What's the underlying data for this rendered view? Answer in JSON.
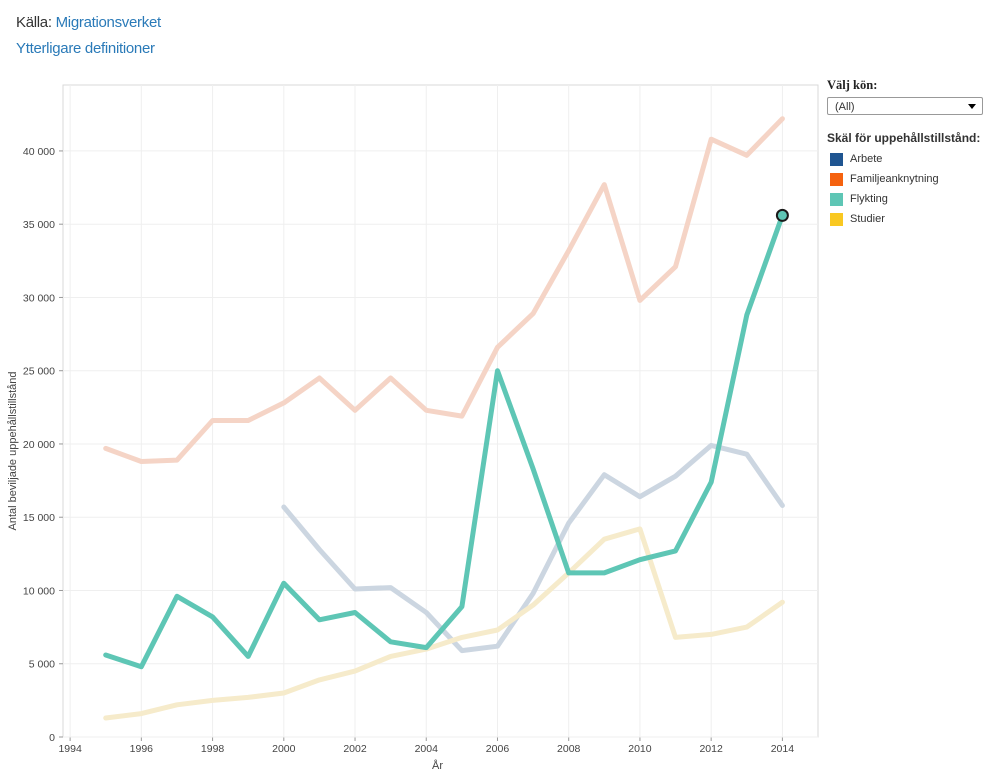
{
  "header": {
    "source_label": "Källa:",
    "source_link": "Migrationsverket",
    "definitions_link": "Ytterligare definitioner"
  },
  "filter": {
    "title": "Välj kön:",
    "selected": "(All)"
  },
  "legend": {
    "title": "Skäl för uppehållstillstånd:",
    "items": [
      {
        "label": "Arbete",
        "color": "#1f5591"
      },
      {
        "label": "Familjeanknytning",
        "color": "#f5620f"
      },
      {
        "label": "Flykting",
        "color": "#5ec6b5"
      },
      {
        "label": "Studier",
        "color": "#f9c821"
      }
    ]
  },
  "chart_data": {
    "type": "line",
    "xlabel": "År",
    "ylabel": "Antal beviljade uppehållstillstånd",
    "xlim": [
      1993.8,
      2015
    ],
    "ylim": [
      0,
      44500
    ],
    "x_ticks": [
      1994,
      1996,
      1998,
      2000,
      2002,
      2004,
      2006,
      2008,
      2010,
      2012,
      2014
    ],
    "y_ticks": [
      0,
      5000,
      10000,
      15000,
      20000,
      25000,
      30000,
      35000,
      40000
    ],
    "y_tick_labels": [
      "0",
      "5 000",
      "10 000",
      "15 000",
      "20 000",
      "25 000",
      "30 000",
      "35 000",
      "40 000"
    ],
    "grid": true,
    "highlighted_series": "Flykting",
    "series": [
      {
        "name": "Familjeanknytning",
        "color": "#f5d4c6",
        "x": [
          1995,
          1996,
          1997,
          1998,
          1999,
          2000,
          2001,
          2002,
          2003,
          2004,
          2005,
          2006,
          2007,
          2008,
          2009,
          2010,
          2011,
          2012,
          2013,
          2014
        ],
        "values": [
          19700,
          18800,
          18900,
          21600,
          21600,
          22800,
          24500,
          22300,
          24500,
          22300,
          21900,
          26600,
          28900,
          33200,
          37700,
          29800,
          32100,
          40800,
          39700,
          42200
        ]
      },
      {
        "name": "Arbete",
        "color": "#ccd6e1",
        "x": [
          2000,
          2001,
          2002,
          2003,
          2004,
          2005,
          2006,
          2007,
          2008,
          2009,
          2010,
          2011,
          2012,
          2013,
          2014
        ],
        "values": [
          15700,
          12800,
          10100,
          10200,
          8500,
          5900,
          6200,
          9800,
          14600,
          17900,
          16400,
          17800,
          19900,
          19300,
          15800
        ]
      },
      {
        "name": "Studier",
        "color": "#f6ebcb",
        "x": [
          1995,
          1996,
          1997,
          1998,
          1999,
          2000,
          2001,
          2002,
          2003,
          2004,
          2005,
          2006,
          2007,
          2008,
          2009,
          2010,
          2011,
          2012,
          2013,
          2014
        ],
        "values": [
          1300,
          1600,
          2200,
          2500,
          2700,
          3000,
          3900,
          4500,
          5500,
          6000,
          6800,
          7300,
          9000,
          11200,
          13500,
          14200,
          6800,
          7000,
          7500,
          9200
        ]
      },
      {
        "name": "Flykting",
        "color": "#5ec6b5",
        "x": [
          1995,
          1996,
          1997,
          1998,
          1999,
          2000,
          2001,
          2002,
          2003,
          2004,
          2005,
          2006,
          2007,
          2008,
          2009,
          2010,
          2011,
          2012,
          2013,
          2014
        ],
        "values": [
          5600,
          4800,
          9600,
          8200,
          5500,
          10500,
          8000,
          8500,
          6500,
          6100,
          8900,
          25000,
          18300,
          11200,
          11200,
          12100,
          12700,
          17400,
          28800,
          35600
        ]
      }
    ]
  }
}
